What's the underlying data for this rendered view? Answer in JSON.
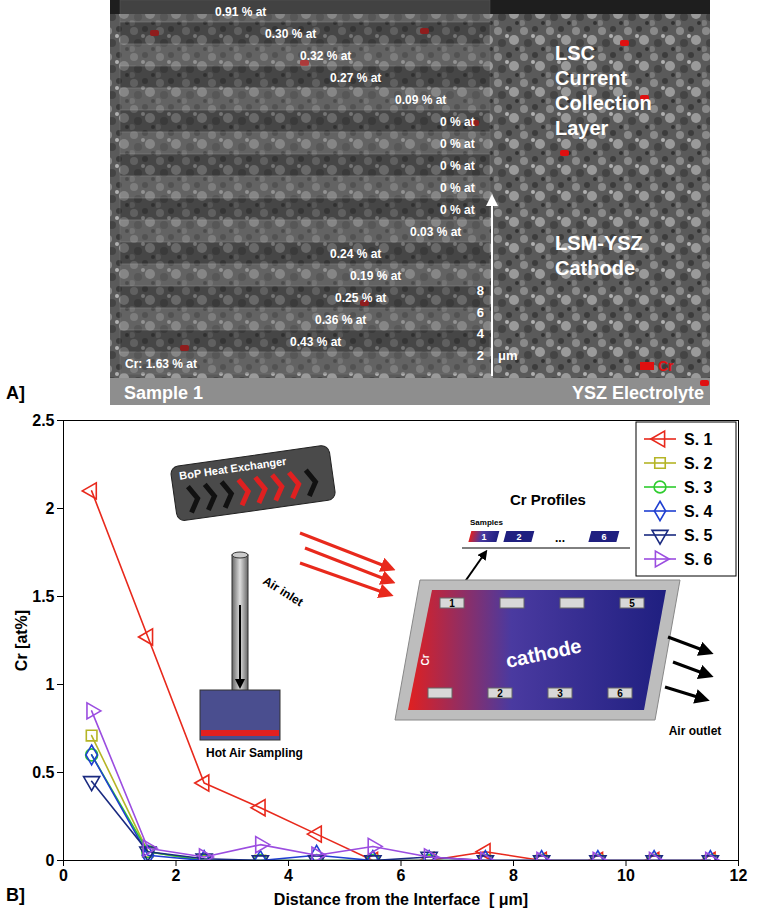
{
  "panel_a": {
    "letter": "A]",
    "sample": "Sample 1",
    "layers": {
      "top": "LSC Current Collection Layer",
      "middle": "LSM-YSZ Cathode",
      "bottom": "YSZ Electrolyte"
    },
    "strip_labels": [
      "0.91 % at",
      "0.30 % at",
      "0.32 % at",
      "0.27 % at",
      "0.09 % at",
      "0 % at",
      "0 % at",
      "0 % at",
      "0 % at",
      "0 % at",
      "0.03 % at",
      "0.24 % at",
      "0.19 % at",
      "0.25 % at",
      "0.36 % at",
      "0.43 % at",
      "Cr: 1.63 % at"
    ],
    "scale_ticks": [
      2,
      4,
      6,
      8
    ],
    "scale_unit": "μm",
    "legend": "Cr"
  },
  "chart_data": {
    "type": "line",
    "panel_label": "B]",
    "xlabel": "Distance from the Interface  [ μm]",
    "ylabel": "Cr [at%]",
    "x": [
      0.5,
      1.5,
      2.5,
      3.5,
      4.5,
      5.5,
      6.5,
      7.5,
      8.5,
      9.5,
      10.5,
      11.5
    ],
    "xlim": [
      0,
      12
    ],
    "xticks": [
      0,
      2,
      4,
      6,
      8,
      10,
      12
    ],
    "ylim": [
      0,
      2.5
    ],
    "yticks": [
      0,
      0.5,
      1,
      1.5,
      2,
      2.5
    ],
    "grid": false,
    "legend": "top-right",
    "series": [
      {
        "name": "S. 1",
        "color": "#e8291c",
        "marker": "triangle-left",
        "values": [
          2.1,
          1.27,
          0.44,
          0.3,
          0.15,
          0,
          0,
          0.05,
          0,
          0,
          0,
          0
        ]
      },
      {
        "name": "S. 2",
        "color": "#b5b526",
        "marker": "square",
        "values": [
          0.71,
          0.05,
          0,
          0,
          0,
          0,
          0,
          0,
          0,
          0,
          0,
          0
        ]
      },
      {
        "name": "S. 3",
        "color": "#2ecc2e",
        "marker": "circle",
        "values": [
          0.6,
          0.05,
          0,
          0,
          0,
          0,
          0,
          0,
          0,
          0,
          0,
          0
        ]
      },
      {
        "name": "S. 4",
        "color": "#1f3fd1",
        "marker": "diamond",
        "values": [
          0.6,
          0.03,
          0,
          0,
          0.03,
          0,
          0,
          0,
          0,
          0,
          0,
          0
        ]
      },
      {
        "name": "S. 5",
        "color": "#1a2a80",
        "marker": "triangle-down",
        "values": [
          0.45,
          0.05,
          0.01,
          0,
          0,
          0,
          0.02,
          0,
          0,
          0,
          0,
          0
        ]
      },
      {
        "name": "S. 6",
        "color": "#9b4de0",
        "marker": "triangle-right",
        "values": [
          0.85,
          0.07,
          0.02,
          0.09,
          0.03,
          0.08,
          0.02,
          0,
          0,
          0,
          0,
          0
        ]
      }
    ]
  },
  "inset": {
    "heat_exchanger": "BoP Heat Exchanger",
    "air_inlet": "Air inlet",
    "sampling": "Hot Air Sampling",
    "profiles_title": "Cr Profiles",
    "samples_caption": "Samples",
    "sample_row": [
      "1",
      "2",
      "...",
      "6"
    ],
    "cathode": "cathode",
    "cathode_cr": "Cr",
    "cathode_samples": [
      "1",
      "2",
      "3",
      "5",
      "6"
    ],
    "air_outlet": "Air outlet"
  }
}
